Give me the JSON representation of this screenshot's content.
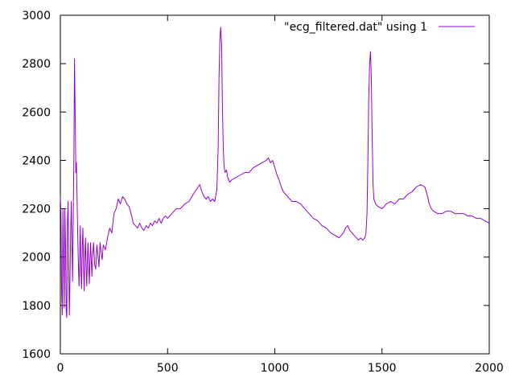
{
  "chart_data": {
    "type": "line",
    "title": "",
    "xlabel": "",
    "ylabel": "",
    "xlim": [
      0,
      2000
    ],
    "ylim": [
      1600,
      3000
    ],
    "x_ticks": [
      0,
      500,
      1000,
      1500,
      2000
    ],
    "y_ticks": [
      1600,
      1800,
      2000,
      2200,
      2400,
      2600,
      2800,
      3000
    ],
    "x_tick_labels": [
      "0",
      "500",
      "1000",
      "1500",
      "2000"
    ],
    "y_tick_labels": [
      "1600",
      "1800",
      "2000",
      "2200",
      "2400",
      "2600",
      "2800",
      "3000"
    ],
    "grid": false,
    "legend_position": "top-right",
    "series": [
      {
        "name": "\"ecg_filtered.dat\" using 1",
        "color": "#9400d3",
        "points": [
          [
            0,
            2250
          ],
          [
            3,
            2180
          ],
          [
            6,
            1850
          ],
          [
            9,
            1760
          ],
          [
            12,
            2200
          ],
          [
            15,
            1990
          ],
          [
            18,
            1790
          ],
          [
            21,
            2200
          ],
          [
            24,
            2050
          ],
          [
            27,
            1780
          ],
          [
            30,
            1750
          ],
          [
            33,
            2150
          ],
          [
            36,
            2230
          ],
          [
            39,
            1980
          ],
          [
            42,
            1760
          ],
          [
            45,
            1920
          ],
          [
            48,
            2100
          ],
          [
            51,
            2230
          ],
          [
            54,
            2060
          ],
          [
            57,
            1900
          ],
          [
            60,
            2150
          ],
          [
            63,
            2420
          ],
          [
            66,
            2820
          ],
          [
            69,
            2600
          ],
          [
            72,
            2350
          ],
          [
            75,
            2390
          ],
          [
            78,
            2240
          ],
          [
            81,
            2090
          ],
          [
            84,
            1970
          ],
          [
            87,
            1880
          ],
          [
            90,
            2000
          ],
          [
            93,
            2130
          ],
          [
            96,
            1940
          ],
          [
            99,
            1870
          ],
          [
            102,
            2040
          ],
          [
            105,
            2120
          ],
          [
            108,
            1960
          ],
          [
            111,
            1860
          ],
          [
            114,
            2000
          ],
          [
            117,
            2080
          ],
          [
            120,
            1960
          ],
          [
            123,
            1880
          ],
          [
            126,
            1990
          ],
          [
            129,
            2060
          ],
          [
            132,
            1970
          ],
          [
            135,
            1890
          ],
          [
            138,
            1990
          ],
          [
            141,
            2060
          ],
          [
            144,
            1990
          ],
          [
            147,
            1920
          ],
          [
            150,
            2000
          ],
          [
            155,
            2060
          ],
          [
            160,
            1970
          ],
          [
            165,
            1950
          ],
          [
            170,
            2050
          ],
          [
            175,
            2010
          ],
          [
            180,
            1960
          ],
          [
            185,
            2060
          ],
          [
            190,
            2020
          ],
          [
            195,
            1990
          ],
          [
            200,
            2050
          ],
          [
            210,
            2030
          ],
          [
            220,
            2080
          ],
          [
            230,
            2120
          ],
          [
            240,
            2100
          ],
          [
            250,
            2180
          ],
          [
            260,
            2200
          ],
          [
            270,
            2240
          ],
          [
            280,
            2220
          ],
          [
            290,
            2250
          ],
          [
            300,
            2240
          ],
          [
            310,
            2220
          ],
          [
            320,
            2210
          ],
          [
            330,
            2180
          ],
          [
            340,
            2140
          ],
          [
            350,
            2130
          ],
          [
            360,
            2120
          ],
          [
            370,
            2140
          ],
          [
            380,
            2120
          ],
          [
            390,
            2110
          ],
          [
            400,
            2130
          ],
          [
            410,
            2120
          ],
          [
            420,
            2140
          ],
          [
            430,
            2130
          ],
          [
            440,
            2150
          ],
          [
            450,
            2140
          ],
          [
            460,
            2160
          ],
          [
            470,
            2140
          ],
          [
            480,
            2160
          ],
          [
            490,
            2170
          ],
          [
            500,
            2160
          ],
          [
            520,
            2180
          ],
          [
            540,
            2200
          ],
          [
            560,
            2200
          ],
          [
            580,
            2220
          ],
          [
            600,
            2230
          ],
          [
            620,
            2260
          ],
          [
            635,
            2280
          ],
          [
            650,
            2300
          ],
          [
            660,
            2270
          ],
          [
            670,
            2250
          ],
          [
            680,
            2240
          ],
          [
            690,
            2250
          ],
          [
            700,
            2230
          ],
          [
            710,
            2240
          ],
          [
            720,
            2230
          ],
          [
            730,
            2280
          ],
          [
            736,
            2450
          ],
          [
            740,
            2750
          ],
          [
            744,
            2900
          ],
          [
            748,
            2950
          ],
          [
            752,
            2880
          ],
          [
            756,
            2600
          ],
          [
            760,
            2450
          ],
          [
            764,
            2370
          ],
          [
            768,
            2350
          ],
          [
            775,
            2360
          ],
          [
            780,
            2330
          ],
          [
            790,
            2310
          ],
          [
            800,
            2320
          ],
          [
            820,
            2330
          ],
          [
            840,
            2340
          ],
          [
            860,
            2350
          ],
          [
            880,
            2350
          ],
          [
            900,
            2370
          ],
          [
            920,
            2380
          ],
          [
            940,
            2390
          ],
          [
            960,
            2400
          ],
          [
            970,
            2410
          ],
          [
            980,
            2390
          ],
          [
            990,
            2400
          ],
          [
            1000,
            2370
          ],
          [
            1010,
            2340
          ],
          [
            1020,
            2320
          ],
          [
            1030,
            2290
          ],
          [
            1040,
            2270
          ],
          [
            1050,
            2260
          ],
          [
            1060,
            2250
          ],
          [
            1070,
            2240
          ],
          [
            1080,
            2230
          ],
          [
            1100,
            2230
          ],
          [
            1120,
            2220
          ],
          [
            1140,
            2200
          ],
          [
            1160,
            2180
          ],
          [
            1180,
            2160
          ],
          [
            1200,
            2150
          ],
          [
            1220,
            2130
          ],
          [
            1240,
            2120
          ],
          [
            1260,
            2100
          ],
          [
            1280,
            2090
          ],
          [
            1300,
            2080
          ],
          [
            1320,
            2100
          ],
          [
            1330,
            2120
          ],
          [
            1340,
            2130
          ],
          [
            1350,
            2110
          ],
          [
            1360,
            2100
          ],
          [
            1370,
            2090
          ],
          [
            1380,
            2080
          ],
          [
            1390,
            2070
          ],
          [
            1400,
            2080
          ],
          [
            1410,
            2070
          ],
          [
            1420,
            2080
          ],
          [
            1425,
            2100
          ],
          [
            1430,
            2180
          ],
          [
            1434,
            2400
          ],
          [
            1438,
            2650
          ],
          [
            1442,
            2800
          ],
          [
            1446,
            2850
          ],
          [
            1450,
            2750
          ],
          [
            1454,
            2500
          ],
          [
            1458,
            2300
          ],
          [
            1462,
            2240
          ],
          [
            1470,
            2220
          ],
          [
            1480,
            2210
          ],
          [
            1500,
            2200
          ],
          [
            1520,
            2220
          ],
          [
            1540,
            2230
          ],
          [
            1560,
            2220
          ],
          [
            1580,
            2240
          ],
          [
            1600,
            2240
          ],
          [
            1620,
            2260
          ],
          [
            1640,
            2270
          ],
          [
            1660,
            2290
          ],
          [
            1680,
            2300
          ],
          [
            1700,
            2290
          ],
          [
            1710,
            2260
          ],
          [
            1720,
            2220
          ],
          [
            1730,
            2200
          ],
          [
            1740,
            2190
          ],
          [
            1760,
            2180
          ],
          [
            1780,
            2180
          ],
          [
            1800,
            2190
          ],
          [
            1820,
            2190
          ],
          [
            1840,
            2180
          ],
          [
            1860,
            2180
          ],
          [
            1880,
            2180
          ],
          [
            1900,
            2170
          ],
          [
            1920,
            2170
          ],
          [
            1940,
            2160
          ],
          [
            1960,
            2160
          ],
          [
            1980,
            2150
          ],
          [
            2000,
            2140
          ]
        ]
      }
    ]
  }
}
